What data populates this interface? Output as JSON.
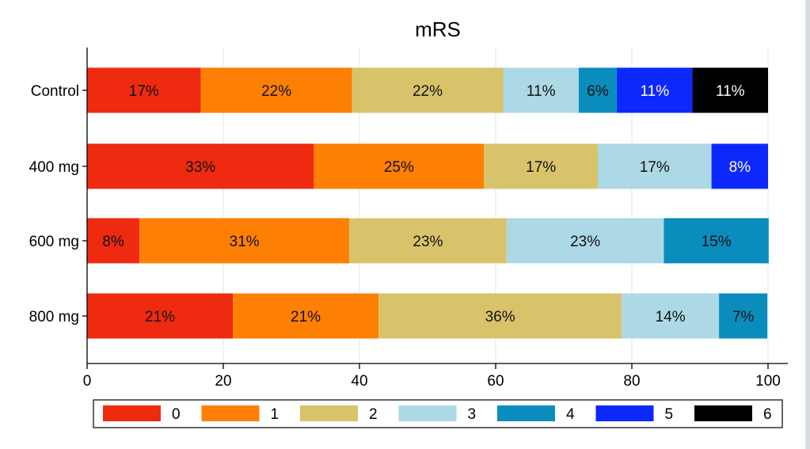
{
  "chart_data": {
    "type": "bar",
    "orientation": "horizontal",
    "stacked": true,
    "title": "mRS",
    "xlabel": "",
    "ylabel": "",
    "xlim": [
      0,
      100
    ],
    "x_ticks": [
      0,
      20,
      40,
      60,
      80,
      100
    ],
    "grid": true,
    "legend_position": "bottom",
    "categories": [
      "Control",
      "400 mg",
      "600 mg",
      "800 mg"
    ],
    "series": [
      {
        "name": "0",
        "color": "#ee2a10",
        "values": [
          16.7,
          33.3,
          7.7,
          21.4
        ],
        "labels": [
          "17%",
          "33%",
          "8%",
          "21%"
        ]
      },
      {
        "name": "1",
        "color": "#fd8005",
        "values": [
          22.2,
          25.0,
          30.8,
          21.4
        ],
        "labels": [
          "22%",
          "25%",
          "31%",
          "21%"
        ]
      },
      {
        "name": "2",
        "color": "#d8c36a",
        "values": [
          22.2,
          16.7,
          23.1,
          35.7
        ],
        "labels": [
          "22%",
          "17%",
          "23%",
          "36%"
        ]
      },
      {
        "name": "3",
        "color": "#add8e6",
        "values": [
          11.1,
          16.7,
          23.1,
          14.3
        ],
        "labels": [
          "11%",
          "17%",
          "23%",
          "14%"
        ]
      },
      {
        "name": "4",
        "color": "#0a8dbd",
        "values": [
          5.6,
          0,
          15.4,
          7.1
        ],
        "labels": [
          "6%",
          "",
          "15%",
          "7%"
        ]
      },
      {
        "name": "5",
        "color": "#0c28fc",
        "values": [
          11.1,
          8.3,
          0,
          0
        ],
        "labels": [
          "11%",
          "8%",
          "",
          ""
        ]
      },
      {
        "name": "6",
        "color": "#000000",
        "values": [
          11.1,
          0,
          0,
          0
        ],
        "labels": [
          "11%",
          "",
          "",
          ""
        ]
      }
    ],
    "label_colors": {
      "dark": "#111111",
      "light": "#ffffff"
    }
  }
}
